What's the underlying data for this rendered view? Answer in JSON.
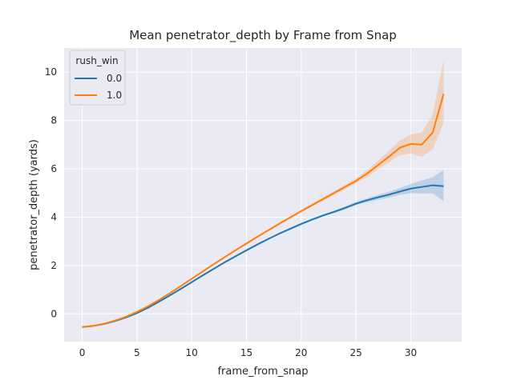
{
  "chart_data": {
    "type": "line",
    "title": "Mean penetrator_depth by Frame from Snap",
    "xlabel": "frame_from_snap",
    "ylabel": "penetrator_depth (yards)",
    "xlim": [
      -1.65,
      34.65
    ],
    "ylim": [
      -1.15,
      11.0
    ],
    "xticks": [
      0,
      5,
      10,
      15,
      20,
      25,
      30
    ],
    "yticks": [
      0,
      2,
      4,
      6,
      8,
      10
    ],
    "grid": true,
    "legend": {
      "title": "rush_win",
      "placement": "top-left"
    },
    "x": [
      0,
      1,
      2,
      3,
      4,
      5,
      6,
      7,
      8,
      9,
      10,
      11,
      12,
      13,
      14,
      15,
      16,
      17,
      18,
      19,
      20,
      21,
      22,
      23,
      24,
      25,
      26,
      27,
      28,
      29,
      30,
      31,
      32,
      33
    ],
    "series": [
      {
        "name": "0.0",
        "color": "#1f77b4",
        "values": [
          -0.55,
          -0.5,
          -0.42,
          -0.3,
          -0.15,
          0.03,
          0.25,
          0.5,
          0.76,
          1.03,
          1.31,
          1.59,
          1.86,
          2.13,
          2.38,
          2.63,
          2.87,
          3.1,
          3.32,
          3.52,
          3.72,
          3.9,
          4.07,
          4.22,
          4.38,
          4.56,
          4.7,
          4.82,
          4.93,
          5.06,
          5.18,
          5.25,
          5.32,
          5.28
        ],
        "ci_upper": [
          -0.52,
          -0.47,
          -0.39,
          -0.27,
          -0.12,
          0.06,
          0.28,
          0.53,
          0.79,
          1.06,
          1.34,
          1.62,
          1.89,
          2.16,
          2.41,
          2.66,
          2.9,
          3.13,
          3.35,
          3.56,
          3.76,
          3.94,
          4.11,
          4.27,
          4.44,
          4.63,
          4.78,
          4.92,
          5.05,
          5.2,
          5.37,
          5.52,
          5.65,
          5.95
        ],
        "ci_lower": [
          -0.58,
          -0.53,
          -0.45,
          -0.33,
          -0.18,
          0.0,
          0.22,
          0.47,
          0.73,
          1.0,
          1.28,
          1.56,
          1.83,
          2.1,
          2.35,
          2.6,
          2.84,
          3.07,
          3.29,
          3.48,
          3.68,
          3.86,
          4.03,
          4.17,
          4.32,
          4.49,
          4.62,
          4.72,
          4.81,
          4.92,
          4.99,
          4.98,
          4.99,
          4.65
        ]
      },
      {
        "name": "1.0",
        "color": "#ff7f0e",
        "values": [
          -0.55,
          -0.5,
          -0.41,
          -0.28,
          -0.12,
          0.08,
          0.31,
          0.57,
          0.85,
          1.15,
          1.45,
          1.75,
          2.05,
          2.34,
          2.63,
          2.91,
          3.19,
          3.46,
          3.73,
          3.99,
          4.25,
          4.5,
          4.75,
          5.0,
          5.25,
          5.5,
          5.8,
          6.15,
          6.5,
          6.87,
          7.03,
          7.0,
          7.5,
          9.1
        ],
        "ci_upper": [
          -0.52,
          -0.47,
          -0.38,
          -0.25,
          -0.09,
          0.11,
          0.34,
          0.6,
          0.88,
          1.18,
          1.48,
          1.78,
          2.08,
          2.38,
          2.67,
          2.95,
          3.23,
          3.5,
          3.78,
          4.04,
          4.3,
          4.56,
          4.82,
          5.08,
          5.34,
          5.61,
          5.94,
          6.33,
          6.74,
          7.17,
          7.43,
          7.5,
          8.25,
          10.5
        ],
        "ci_lower": [
          -0.58,
          -0.53,
          -0.44,
          -0.31,
          -0.15,
          0.05,
          0.28,
          0.54,
          0.82,
          1.12,
          1.42,
          1.72,
          2.02,
          2.3,
          2.59,
          2.87,
          3.15,
          3.42,
          3.68,
          3.94,
          4.2,
          4.44,
          4.68,
          4.92,
          5.16,
          5.39,
          5.66,
          5.97,
          6.26,
          6.57,
          6.63,
          6.5,
          6.8,
          7.9
        ]
      }
    ]
  }
}
